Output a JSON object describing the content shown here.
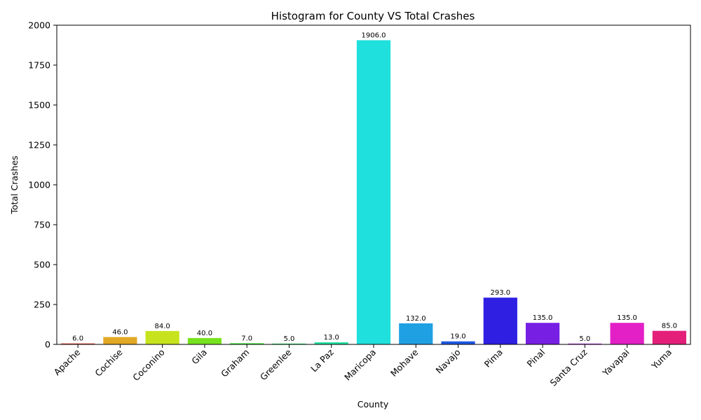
{
  "chart_data": {
    "type": "bar",
    "title": "Histogram for County VS Total Crashes",
    "xlabel": "County",
    "ylabel": "Total Crashes",
    "ylim": [
      0,
      2000
    ],
    "yticks": [
      "0",
      "250",
      "500",
      "750",
      "1000",
      "1250",
      "1500",
      "1750",
      "2000"
    ],
    "ytick_values": [
      0,
      250,
      500,
      750,
      1000,
      1250,
      1500,
      1750,
      2000
    ],
    "categories": [
      "Apache",
      "Cochise",
      "Coconino",
      "Gila",
      "Graham",
      "Greenlee",
      "La Paz",
      "Maricopa",
      "Mohave",
      "Navajo",
      "Pima",
      "Pinal",
      "Santa Cruz",
      "Yavapai",
      "Yuma"
    ],
    "values": [
      6,
      46,
      84,
      40,
      7,
      5,
      13,
      1906,
      132,
      19,
      293,
      135,
      5,
      135,
      85
    ],
    "value_labels": [
      "6.0",
      "46.0",
      "84.0",
      "40.0",
      "7.0",
      "5.0",
      "13.0",
      "1906.0",
      "132.0",
      "19.0",
      "293.0",
      "135.0",
      "5.0",
      "135.0",
      "85.0"
    ],
    "colors": [
      "#e0492c",
      "#e2a826",
      "#c7e31e",
      "#77e31e",
      "#2ee324",
      "#1fe35d",
      "#1fe3a0",
      "#1fe0dc",
      "#1fa0e3",
      "#1f57e3",
      "#2e1fe3",
      "#771fe3",
      "#c01fe3",
      "#e31fc6",
      "#e31f7a"
    ],
    "grid": false,
    "legend": "none"
  }
}
